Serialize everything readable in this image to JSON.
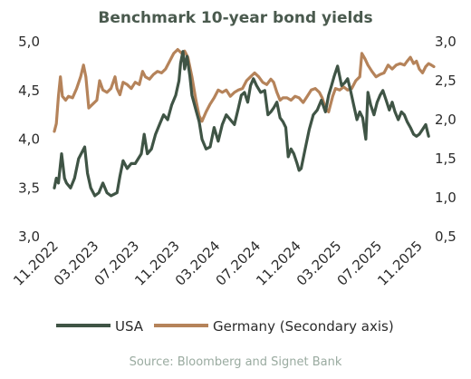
{
  "chart_data": {
    "type": "line",
    "title": "Benchmark 10-year bond yields",
    "source": "Source: Bloomberg and Signet Bank",
    "x_tick_labels": [
      "11.2022",
      "03.2023",
      "07.2023",
      "11.2023",
      "03.2024",
      "07.2024",
      "11.2024",
      "03.2025",
      "07.2025",
      "11.2025"
    ],
    "y_left": {
      "ticks": [
        "3,0",
        "3,5",
        "4,0",
        "4,5",
        "5,0"
      ],
      "ylim": [
        3.0,
        5.0
      ]
    },
    "y_right": {
      "ticks": [
        "0,5",
        "1,0",
        "1,5",
        "2,0",
        "2,5",
        "3,0"
      ],
      "ylim": [
        0.5,
        3.0
      ]
    },
    "grid": false,
    "legend_position": "bottom",
    "series": [
      {
        "name": "USA",
        "axis": "left",
        "color": "#3f5445",
        "points": [
          [
            0.0,
            3.5
          ],
          [
            0.05,
            3.6
          ],
          [
            0.1,
            3.55
          ],
          [
            0.18,
            3.85
          ],
          [
            0.25,
            3.6
          ],
          [
            0.3,
            3.55
          ],
          [
            0.4,
            3.5
          ],
          [
            0.5,
            3.6
          ],
          [
            0.6,
            3.8
          ],
          [
            0.75,
            3.92
          ],
          [
            0.82,
            3.65
          ],
          [
            0.9,
            3.5
          ],
          [
            1.0,
            3.42
          ],
          [
            1.1,
            3.45
          ],
          [
            1.2,
            3.55
          ],
          [
            1.3,
            3.45
          ],
          [
            1.4,
            3.42
          ],
          [
            1.55,
            3.45
          ],
          [
            1.62,
            3.62
          ],
          [
            1.7,
            3.78
          ],
          [
            1.8,
            3.7
          ],
          [
            1.9,
            3.75
          ],
          [
            2.0,
            3.75
          ],
          [
            2.15,
            3.85
          ],
          [
            2.22,
            4.05
          ],
          [
            2.3,
            3.85
          ],
          [
            2.4,
            3.9
          ],
          [
            2.5,
            4.05
          ],
          [
            2.6,
            4.15
          ],
          [
            2.7,
            4.25
          ],
          [
            2.8,
            4.2
          ],
          [
            2.9,
            4.35
          ],
          [
            3.0,
            4.45
          ],
          [
            3.08,
            4.6
          ],
          [
            3.12,
            4.78
          ],
          [
            3.18,
            4.9
          ],
          [
            3.22,
            4.72
          ],
          [
            3.28,
            4.85
          ],
          [
            3.35,
            4.65
          ],
          [
            3.4,
            4.45
          ],
          [
            3.5,
            4.3
          ],
          [
            3.58,
            4.18
          ],
          [
            3.65,
            4.0
          ],
          [
            3.75,
            3.9
          ],
          [
            3.85,
            3.92
          ],
          [
            3.95,
            4.12
          ],
          [
            4.05,
            3.98
          ],
          [
            4.15,
            4.15
          ],
          [
            4.25,
            4.25
          ],
          [
            4.35,
            4.2
          ],
          [
            4.45,
            4.15
          ],
          [
            4.55,
            4.32
          ],
          [
            4.62,
            4.45
          ],
          [
            4.7,
            4.48
          ],
          [
            4.78,
            4.38
          ],
          [
            4.85,
            4.55
          ],
          [
            4.92,
            4.62
          ],
          [
            5.0,
            4.55
          ],
          [
            5.1,
            4.48
          ],
          [
            5.2,
            4.5
          ],
          [
            5.28,
            4.25
          ],
          [
            5.35,
            4.28
          ],
          [
            5.42,
            4.32
          ],
          [
            5.5,
            4.38
          ],
          [
            5.58,
            4.22
          ],
          [
            5.65,
            4.18
          ],
          [
            5.72,
            4.12
          ],
          [
            5.78,
            3.82
          ],
          [
            5.85,
            3.9
          ],
          [
            5.92,
            3.85
          ],
          [
            6.0,
            3.75
          ],
          [
            6.05,
            3.68
          ],
          [
            6.1,
            3.7
          ],
          [
            6.2,
            3.9
          ],
          [
            6.3,
            4.1
          ],
          [
            6.4,
            4.25
          ],
          [
            6.5,
            4.3
          ],
          [
            6.6,
            4.4
          ],
          [
            6.7,
            4.28
          ],
          [
            6.78,
            4.45
          ],
          [
            6.85,
            4.55
          ],
          [
            6.92,
            4.65
          ],
          [
            7.0,
            4.75
          ],
          [
            7.05,
            4.65
          ],
          [
            7.1,
            4.55
          ],
          [
            7.18,
            4.58
          ],
          [
            7.25,
            4.62
          ],
          [
            7.32,
            4.5
          ],
          [
            7.4,
            4.35
          ],
          [
            7.48,
            4.2
          ],
          [
            7.55,
            4.28
          ],
          [
            7.62,
            4.22
          ],
          [
            7.7,
            4.0
          ],
          [
            7.75,
            4.48
          ],
          [
            7.82,
            4.35
          ],
          [
            7.9,
            4.25
          ],
          [
            7.98,
            4.38
          ],
          [
            8.05,
            4.45
          ],
          [
            8.12,
            4.5
          ],
          [
            8.2,
            4.4
          ],
          [
            8.28,
            4.3
          ],
          [
            8.35,
            4.38
          ],
          [
            8.42,
            4.28
          ],
          [
            8.5,
            4.2
          ],
          [
            8.58,
            4.28
          ],
          [
            8.65,
            4.25
          ],
          [
            8.72,
            4.18
          ],
          [
            8.8,
            4.12
          ],
          [
            8.88,
            4.05
          ],
          [
            8.95,
            4.03
          ],
          [
            9.02,
            4.05
          ],
          [
            9.1,
            4.1
          ],
          [
            9.18,
            4.15
          ],
          [
            9.25,
            4.03
          ]
        ]
      },
      {
        "name": "Germany (Secondary axis)",
        "axis": "right",
        "color": "#b5835a",
        "points": [
          [
            0.0,
            1.85
          ],
          [
            0.05,
            1.95
          ],
          [
            0.1,
            2.3
          ],
          [
            0.15,
            2.55
          ],
          [
            0.2,
            2.3
          ],
          [
            0.28,
            2.25
          ],
          [
            0.35,
            2.3
          ],
          [
            0.45,
            2.28
          ],
          [
            0.55,
            2.4
          ],
          [
            0.65,
            2.55
          ],
          [
            0.72,
            2.7
          ],
          [
            0.78,
            2.55
          ],
          [
            0.85,
            2.15
          ],
          [
            0.95,
            2.2
          ],
          [
            1.05,
            2.25
          ],
          [
            1.12,
            2.5
          ],
          [
            1.2,
            2.38
          ],
          [
            1.3,
            2.35
          ],
          [
            1.4,
            2.4
          ],
          [
            1.5,
            2.55
          ],
          [
            1.55,
            2.4
          ],
          [
            1.62,
            2.32
          ],
          [
            1.7,
            2.48
          ],
          [
            1.8,
            2.45
          ],
          [
            1.9,
            2.4
          ],
          [
            2.0,
            2.48
          ],
          [
            2.1,
            2.45
          ],
          [
            2.18,
            2.62
          ],
          [
            2.25,
            2.55
          ],
          [
            2.35,
            2.52
          ],
          [
            2.45,
            2.58
          ],
          [
            2.55,
            2.62
          ],
          [
            2.65,
            2.6
          ],
          [
            2.75,
            2.65
          ],
          [
            2.85,
            2.75
          ],
          [
            2.95,
            2.85
          ],
          [
            3.05,
            2.9
          ],
          [
            3.15,
            2.85
          ],
          [
            3.22,
            2.88
          ],
          [
            3.3,
            2.8
          ],
          [
            3.4,
            2.55
          ],
          [
            3.5,
            2.25
          ],
          [
            3.58,
            2.05
          ],
          [
            3.65,
            1.98
          ],
          [
            3.75,
            2.1
          ],
          [
            3.85,
            2.2
          ],
          [
            3.95,
            2.28
          ],
          [
            4.05,
            2.38
          ],
          [
            4.15,
            2.35
          ],
          [
            4.25,
            2.38
          ],
          [
            4.35,
            2.3
          ],
          [
            4.45,
            2.35
          ],
          [
            4.55,
            2.38
          ],
          [
            4.65,
            2.4
          ],
          [
            4.75,
            2.5
          ],
          [
            4.85,
            2.55
          ],
          [
            4.95,
            2.6
          ],
          [
            5.05,
            2.55
          ],
          [
            5.15,
            2.48
          ],
          [
            5.25,
            2.45
          ],
          [
            5.35,
            2.52
          ],
          [
            5.42,
            2.48
          ],
          [
            5.5,
            2.35
          ],
          [
            5.58,
            2.25
          ],
          [
            5.65,
            2.28
          ],
          [
            5.75,
            2.28
          ],
          [
            5.85,
            2.25
          ],
          [
            5.95,
            2.3
          ],
          [
            6.05,
            2.28
          ],
          [
            6.15,
            2.22
          ],
          [
            6.25,
            2.3
          ],
          [
            6.35,
            2.38
          ],
          [
            6.45,
            2.4
          ],
          [
            6.55,
            2.35
          ],
          [
            6.62,
            2.28
          ],
          [
            6.7,
            2.15
          ],
          [
            6.78,
            2.1
          ],
          [
            6.88,
            2.3
          ],
          [
            6.95,
            2.4
          ],
          [
            7.05,
            2.38
          ],
          [
            7.15,
            2.42
          ],
          [
            7.25,
            2.38
          ],
          [
            7.35,
            2.4
          ],
          [
            7.45,
            2.5
          ],
          [
            7.55,
            2.55
          ],
          [
            7.6,
            2.85
          ],
          [
            7.68,
            2.78
          ],
          [
            7.75,
            2.7
          ],
          [
            7.85,
            2.62
          ],
          [
            7.95,
            2.55
          ],
          [
            8.05,
            2.58
          ],
          [
            8.15,
            2.6
          ],
          [
            8.25,
            2.7
          ],
          [
            8.35,
            2.65
          ],
          [
            8.45,
            2.7
          ],
          [
            8.55,
            2.72
          ],
          [
            8.65,
            2.7
          ],
          [
            8.72,
            2.75
          ],
          [
            8.8,
            2.8
          ],
          [
            8.88,
            2.72
          ],
          [
            8.95,
            2.75
          ],
          [
            9.02,
            2.65
          ],
          [
            9.1,
            2.6
          ],
          [
            9.18,
            2.68
          ],
          [
            9.25,
            2.72
          ],
          [
            9.32,
            2.7
          ],
          [
            9.38,
            2.68
          ]
        ]
      }
    ]
  }
}
